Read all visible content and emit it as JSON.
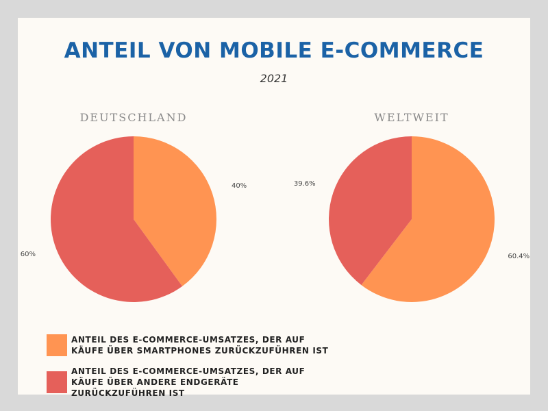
{
  "title": "ANTEIL VON MOBILE E-COMMERCE",
  "subtitle": "2021",
  "colors": {
    "smartphones": "#ff9452",
    "andere": "#e5605a",
    "title": "#1b62a6"
  },
  "legend": [
    {
      "label": "ANTEIL DES E-COMMERCE-UMSATZES, DER AUF KÄUFE ÜBER SMARTPHONES ZURÜCKZUFÜHREN IST",
      "color": "#ff9452"
    },
    {
      "label": "ANTEIL DES E-COMMERCE-UMSATZES, DER AUF KÄUFE ÜBER ANDERE ENDGERÄTE ZURÜCKZUFÜHREN IST",
      "color": "#e5605a"
    }
  ],
  "chart_data": [
    {
      "type": "pie",
      "title": "DEUTSCHLAND",
      "slices": [
        {
          "label": "40%",
          "value": 40,
          "color": "#ff9452"
        },
        {
          "label": "60%",
          "value": 60,
          "color": "#e5605a"
        }
      ]
    },
    {
      "type": "pie",
      "title": "WELTWEIT",
      "slices": [
        {
          "label": "60.4%",
          "value": 60.4,
          "color": "#ff9452"
        },
        {
          "label": "39.6%",
          "value": 39.6,
          "color": "#e5605a"
        }
      ]
    }
  ]
}
